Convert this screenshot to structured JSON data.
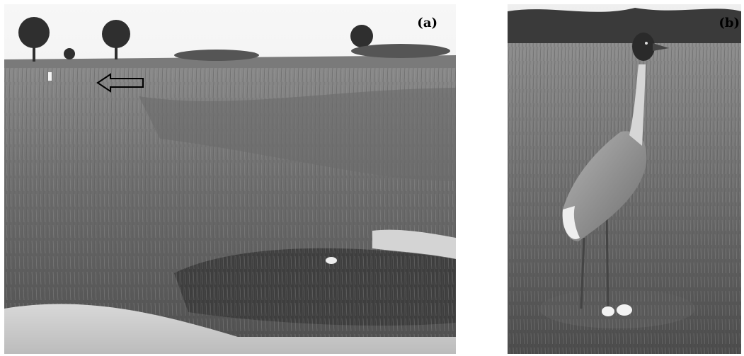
{
  "figure": {
    "panels": [
      {
        "label": "(a)",
        "scene": "wetland-nest-site",
        "annotation": "arrow-pointing-to-crane"
      },
      {
        "label": "(b)",
        "scene": "crane-standing-at-nest-with-eggs",
        "egg_count": 2
      }
    ],
    "colors": {
      "background": "#ffffff",
      "label": "#000000"
    }
  }
}
